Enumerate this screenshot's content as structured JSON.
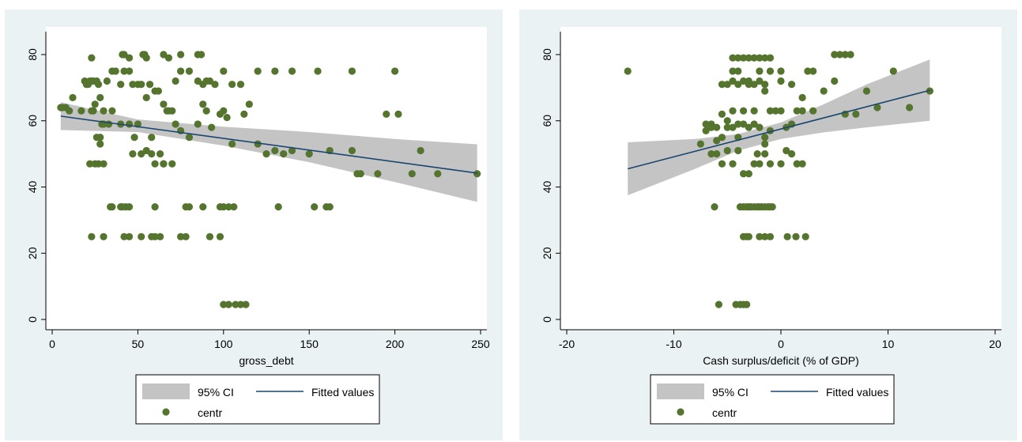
{
  "colors": {
    "background": "#eaf2f3",
    "plot_region": "#ffffff",
    "ci_band": "#c4c4c4",
    "fitted_line": "#1a476f",
    "marker": "#55752f"
  },
  "chart_data": [
    {
      "type": "scatter",
      "xlabel": "gross_debt",
      "ylabel": "",
      "xlim": [
        0,
        250
      ],
      "ylim": [
        0,
        80
      ],
      "xticks": [
        "0",
        "50",
        "100",
        "150",
        "200",
        "250"
      ],
      "yticks": [
        "0",
        "20",
        "40",
        "60",
        "80"
      ],
      "grid": false,
      "legend_position": "bottom",
      "legend": {
        "ci": "95% CI",
        "fitted": "Fitted values",
        "scatter": "centr"
      },
      "fitted_line": {
        "x": [
          5,
          248
        ],
        "y": [
          61.4,
          44.2
        ]
      },
      "ci_band": {
        "x": [
          5,
          50,
          100,
          150,
          200,
          248
        ],
        "lower": [
          57.2,
          56.6,
          52.5,
          47.5,
          41.5,
          35.5
        ],
        "upper": [
          65.6,
          60.4,
          58.2,
          56.6,
          54.5,
          52.9
        ]
      },
      "series": [
        {
          "x": [
            5,
            6,
            8,
            10,
            12,
            17,
            19,
            20,
            21,
            22,
            23,
            24,
            25,
            26,
            27,
            28,
            29,
            30,
            32,
            35,
            37,
            40,
            42,
            45,
            47,
            50,
            52,
            55,
            57,
            60,
            62,
            65,
            67,
            70,
            72,
            75,
            80,
            85,
            88,
            90,
            92,
            95,
            98,
            100,
            105,
            110,
            115,
            120,
            130,
            140,
            155,
            175,
            200,
            23,
            24,
            30,
            33,
            35,
            40,
            45,
            48,
            50,
            52,
            55,
            58,
            60,
            63,
            65,
            68,
            72,
            75,
            80,
            85,
            88,
            90,
            93,
            100,
            102,
            105,
            112,
            120,
            125,
            130,
            135,
            140,
            150,
            162,
            175,
            178,
            180,
            190,
            195,
            202,
            210,
            215,
            225,
            248,
            22,
            25,
            27,
            28,
            30,
            34,
            35,
            40,
            41,
            43,
            45,
            47,
            58,
            60,
            65,
            70,
            78,
            80,
            88,
            98,
            100,
            103,
            106,
            132,
            153,
            160,
            162,
            23,
            30,
            42,
            45,
            52,
            58,
            60,
            63,
            75,
            78,
            92,
            98,
            100,
            103,
            107,
            110,
            113,
            23,
            41,
            42,
            45,
            53,
            54,
            55,
            65,
            68,
            75,
            85,
            87,
            26,
            28
          ],
          "y": [
            64,
            64,
            64,
            63,
            67,
            63,
            72,
            71,
            71,
            72,
            72,
            72,
            65,
            72,
            71,
            67,
            59,
            59,
            72,
            75,
            75,
            71,
            75,
            75,
            71,
            71,
            71,
            67,
            71,
            69,
            69,
            65,
            63,
            63,
            72,
            75,
            75,
            72,
            71,
            72,
            72,
            71,
            62,
            75,
            71,
            71,
            65,
            75,
            75,
            75,
            75,
            75,
            75,
            63,
            63,
            63,
            59,
            63,
            59,
            59,
            55,
            59,
            50,
            51,
            55,
            47,
            50,
            47,
            63,
            59,
            57,
            55,
            59,
            65,
            63,
            58,
            63,
            61,
            53,
            62,
            53,
            50,
            51,
            50,
            51,
            50,
            51,
            51,
            44,
            44,
            44,
            62,
            62,
            44,
            51,
            44,
            44,
            47,
            47,
            47,
            55,
            47,
            34,
            34,
            34,
            34,
            34,
            34,
            50,
            50,
            34,
            47,
            47,
            34,
            34,
            34,
            34,
            34,
            34,
            34,
            34,
            34,
            34,
            34,
            25,
            25,
            25,
            25,
            25,
            25,
            25,
            25,
            25,
            25,
            25,
            25,
            4.5,
            4.5,
            4.5,
            4.5,
            4.5,
            79,
            80,
            80,
            79,
            80,
            80,
            79,
            80,
            79,
            80,
            80,
            80,
            55,
            53
          ]
        }
      ]
    },
    {
      "type": "scatter",
      "xlabel": "Cash surplus/deficit (% of GDP)",
      "ylabel": "",
      "xlim": [
        -20,
        20
      ],
      "ylim": [
        0,
        80
      ],
      "xticks": [
        "-20",
        "-10",
        "0",
        "10",
        "20"
      ],
      "yticks": [
        "0",
        "20",
        "40",
        "60",
        "80"
      ],
      "grid": false,
      "legend_position": "bottom",
      "legend": {
        "ci": "95% CI",
        "fitted": "Fitted values",
        "scatter": "centr"
      },
      "fitted_line": {
        "x": [
          -14.3,
          13.9
        ],
        "y": [
          45.5,
          69.2
        ]
      },
      "ci_band": {
        "x": [
          -14.3,
          -8,
          -4,
          0,
          4,
          8,
          13.9
        ],
        "lower": [
          37.5,
          45.5,
          51.0,
          54.5,
          56.5,
          58.0,
          60.0
        ],
        "upper": [
          53.5,
          54.5,
          56.0,
          59.5,
          65.0,
          71.0,
          78.5
        ]
      },
      "series": [
        {
          "x": [
            -14.3,
            -7,
            -6.5,
            -6,
            -5.5,
            -5,
            -4.5,
            -4,
            -3.5,
            -3,
            -2.5,
            -2,
            -1.5,
            -1,
            -0.5,
            0,
            0.5,
            1,
            1.5,
            2,
            2.5,
            3,
            4,
            5,
            6,
            7,
            8,
            9,
            10.5,
            12,
            13.9,
            -5.5,
            -5,
            -4.5,
            -4.5,
            -4,
            -3.5,
            -3,
            -2.5,
            -2,
            -1.5,
            -1,
            0,
            1,
            2,
            3,
            -7.5,
            -7,
            -6.5,
            -6,
            -5.5,
            -5,
            -4.5,
            -4,
            -3.5,
            -3,
            -2.5,
            -2,
            -1.5,
            -1,
            0.5,
            1.5,
            -6.5,
            -6,
            -5.5,
            -5,
            -4.5,
            -4,
            -3.5,
            -3,
            -2.5,
            -2,
            -1.5,
            -1,
            0,
            1,
            1.5,
            2,
            -6.2,
            -3.8,
            -3.5,
            -3.2,
            -3,
            -2.8,
            -2.5,
            -2.2,
            -2,
            -1.8,
            -1.5,
            -1.2,
            -1,
            -0.8,
            -3.5,
            -3.2,
            -3,
            -2,
            -1.5,
            -1,
            0.6,
            1.4,
            2.3,
            -5.8,
            -4.2,
            -3.8,
            -3.5,
            -3.2,
            -4.5,
            -4,
            -3.5,
            -3,
            -2.5,
            -2,
            -1.5,
            -1,
            0,
            5,
            5.5,
            6,
            6.5,
            -1.5,
            -2.2,
            -4
          ],
          "y": [
            75,
            59,
            58,
            58,
            62,
            60,
            63,
            55,
            63,
            71,
            63,
            72,
            71,
            63,
            63,
            63,
            58,
            59,
            63,
            67,
            75,
            63,
            69,
            72,
            62,
            62,
            69,
            64,
            75,
            64,
            69,
            71,
            71,
            72,
            75,
            71,
            72,
            72,
            71,
            75,
            69,
            75,
            72,
            71,
            63,
            75,
            53,
            57,
            59,
            54,
            55,
            58,
            58,
            59,
            59,
            58,
            59,
            58,
            53,
            57,
            51,
            47,
            50,
            50,
            47,
            51,
            47,
            51,
            44,
            44,
            47,
            47,
            50,
            47,
            47,
            50,
            47,
            47,
            34,
            34,
            34,
            34,
            34,
            34,
            34,
            34,
            34,
            34,
            34,
            34,
            34,
            34,
            25,
            25,
            25,
            25,
            25,
            25,
            25,
            25,
            25,
            4.5,
            4.5,
            4.5,
            4.5,
            4.5,
            79,
            79,
            79,
            79,
            79,
            79,
            79,
            79,
            75,
            80,
            80,
            80,
            80,
            55,
            50,
            75
          ]
        }
      ]
    }
  ]
}
